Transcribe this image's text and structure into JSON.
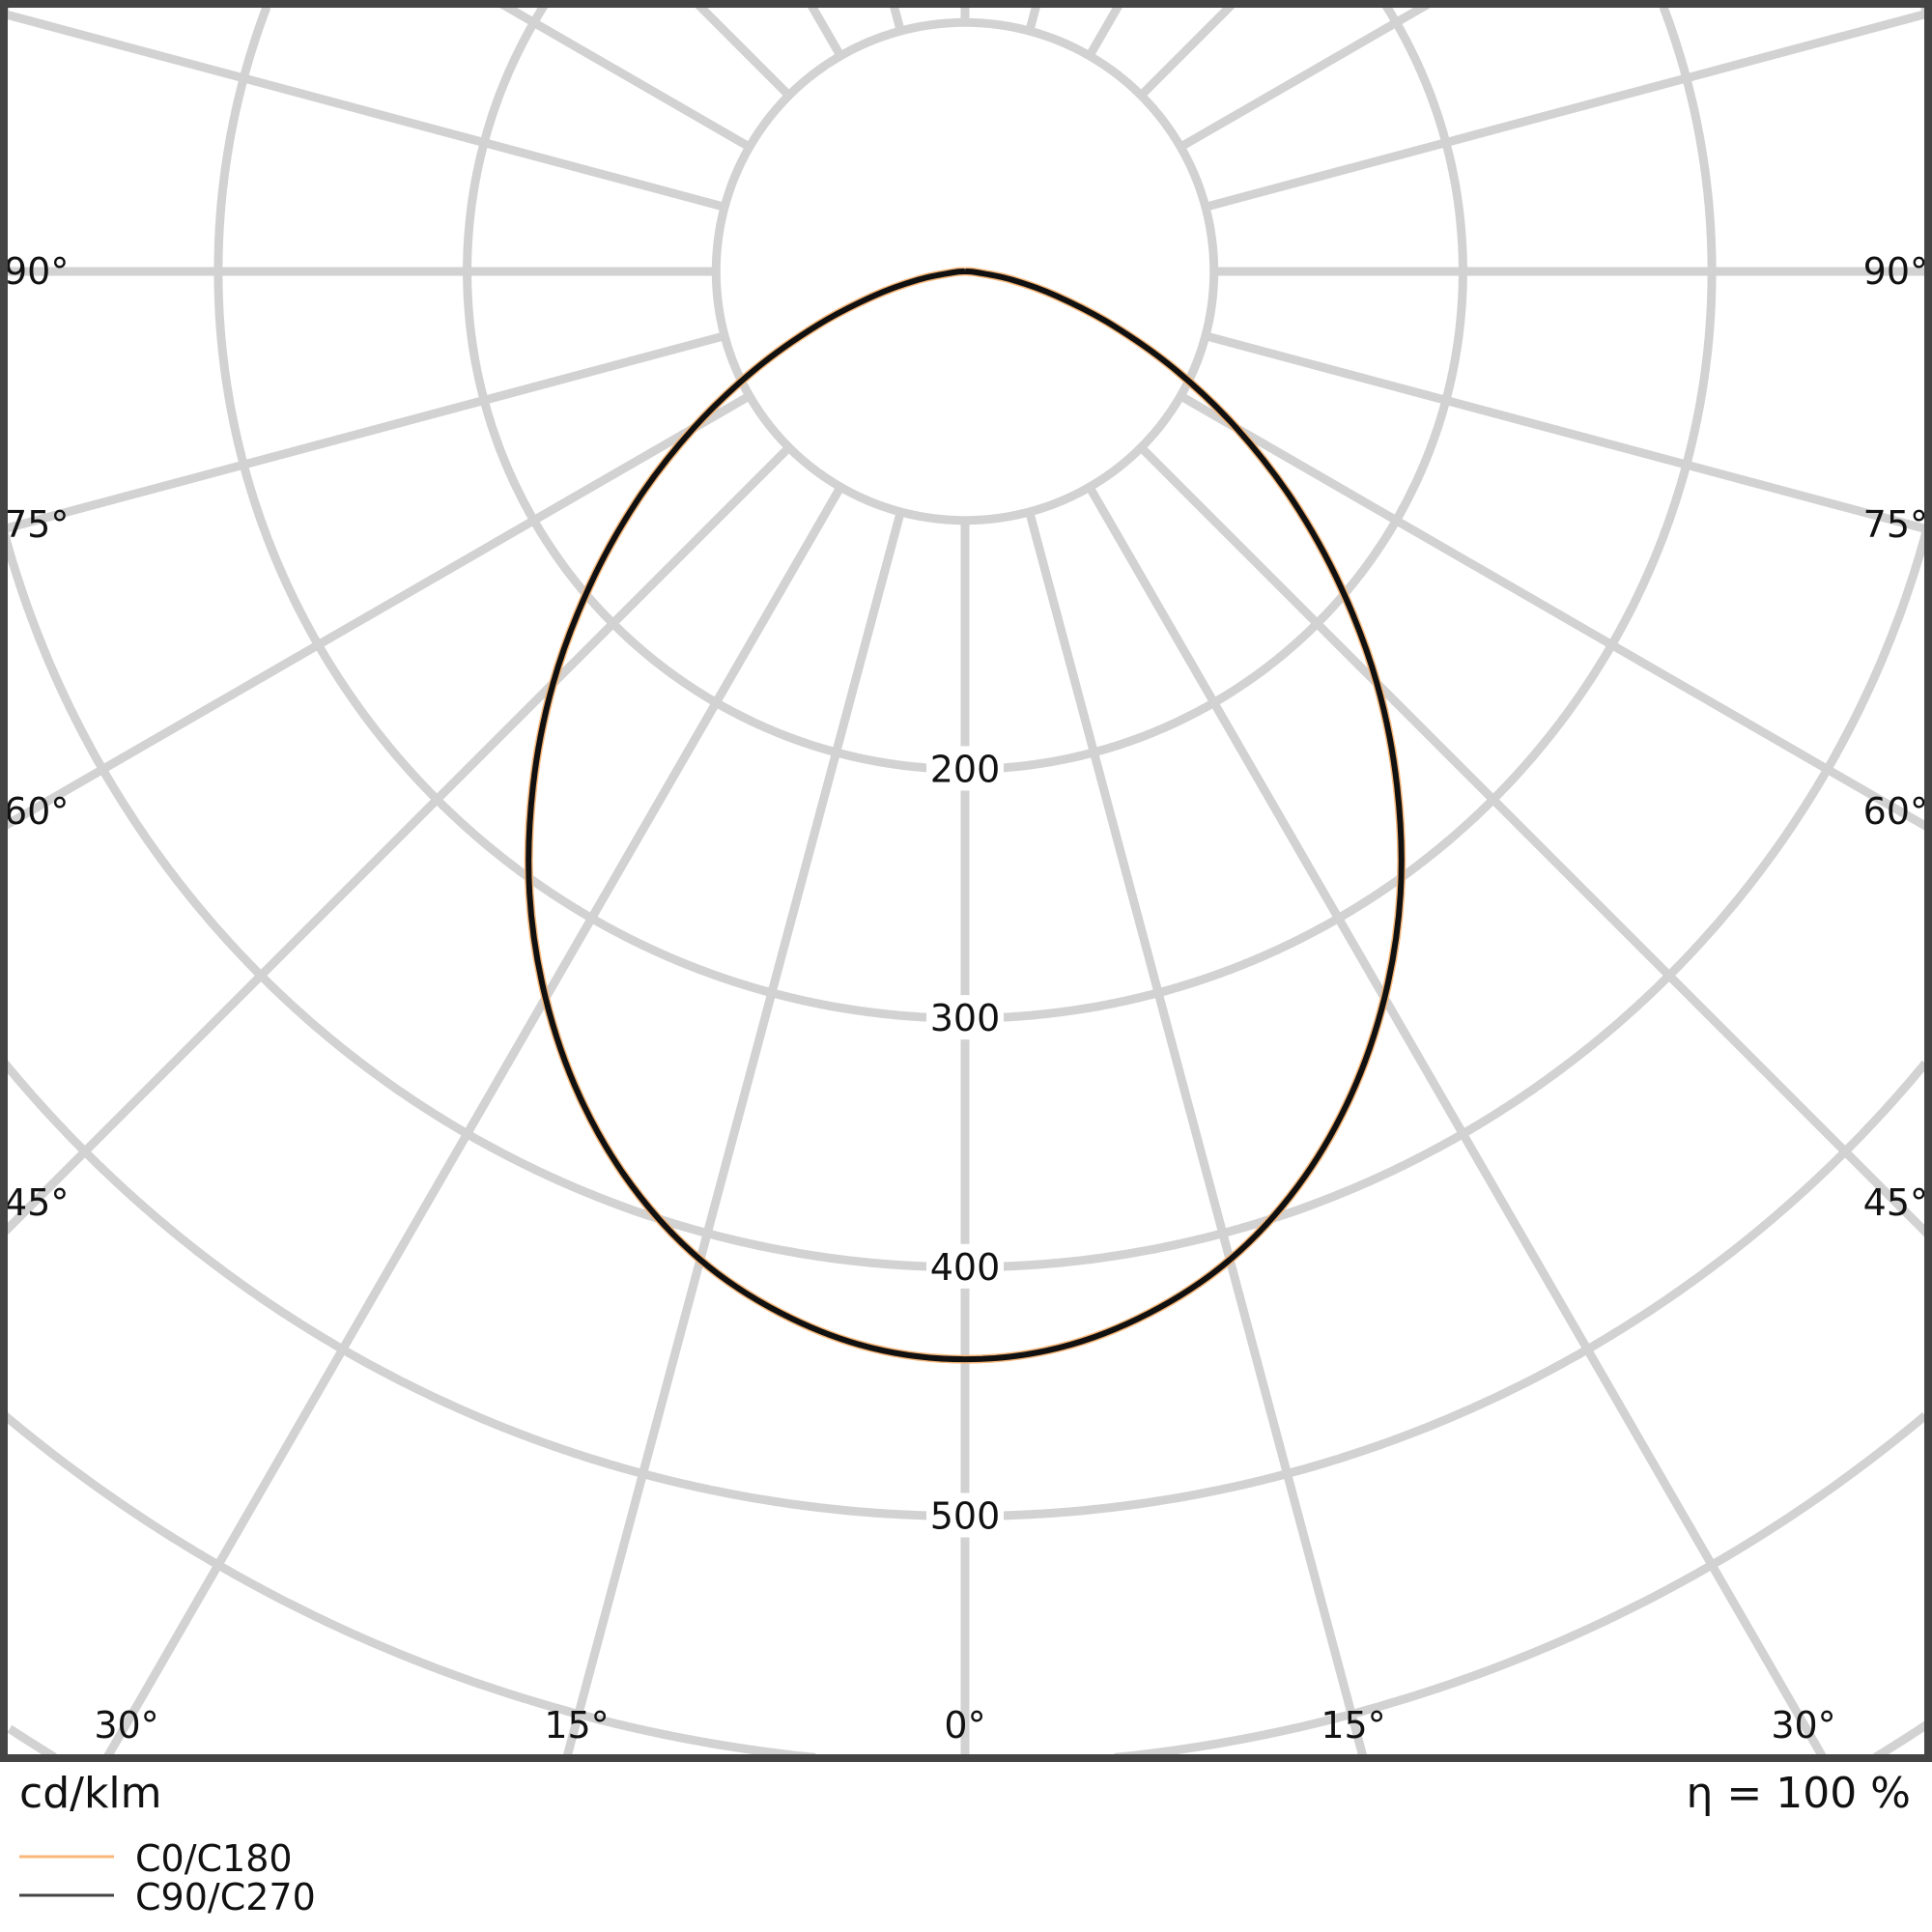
{
  "chart_data": {
    "type": "polar",
    "unit_label": "cd/klm",
    "efficiency_label": "η = 100 %",
    "radial_ticks": [
      200,
      300,
      400,
      500
    ],
    "radial_grid_step": 100,
    "angle_grid_step_deg": 15,
    "angle_labels_left": [
      "90°",
      "75°",
      "60°",
      "45°"
    ],
    "angle_labels_right": [
      "90°",
      "75°",
      "60°",
      "45°"
    ],
    "angle_labels_bottom": [
      "30°",
      "15°",
      "0°",
      "15°",
      "30°"
    ],
    "angles_deg": [
      0,
      5,
      10,
      15,
      20,
      25,
      30,
      35,
      40,
      45,
      50,
      55,
      60,
      65,
      70,
      75,
      80,
      85,
      90
    ],
    "series": [
      {
        "name": "C0/C180",
        "color": "#f7b77a",
        "values": [
          437,
          434,
          425,
          411,
          391,
          366,
          337,
          305,
          270,
          234,
          197,
          161,
          126,
          93,
          63,
          38,
          19,
          5,
          0
        ]
      },
      {
        "name": "C90/C270",
        "color": "#111111",
        "values": [
          437,
          434,
          425,
          411,
          391,
          366,
          337,
          305,
          270,
          234,
          197,
          161,
          126,
          93,
          63,
          38,
          19,
          5,
          0
        ]
      }
    ],
    "grid": true,
    "legend_position": "bottom-left",
    "colors": {
      "grid": "#d2d2d2",
      "frame": "#444444"
    }
  }
}
